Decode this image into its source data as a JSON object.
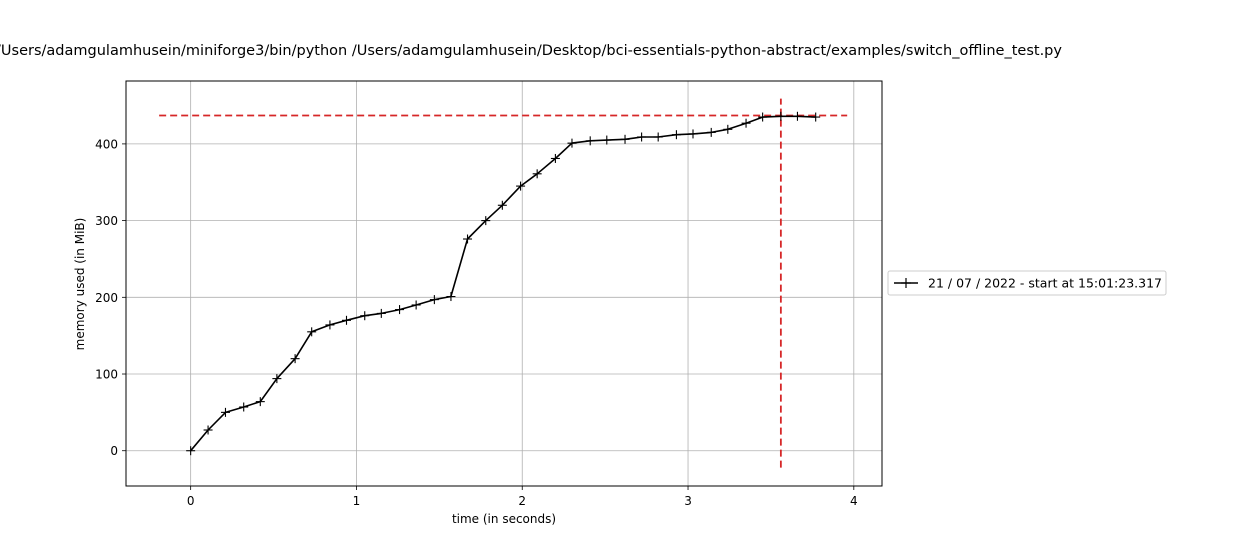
{
  "chart_data": {
    "type": "line",
    "title": "/Users/adamgulamhusein/miniforge3/bin/python /Users/adamgulamhusein/Desktop/bci-essentials-python-abstract/examples/switch_offline_test.py",
    "xlabel": "time (in seconds)",
    "ylabel": "memory used (in MiB)",
    "xlim": [
      -0.39,
      4.17
    ],
    "ylim": [
      -46,
      482
    ],
    "xticks": [
      0,
      1,
      2,
      3,
      4
    ],
    "yticks": [
      0,
      100,
      200,
      300,
      400
    ],
    "grid": true,
    "legend_position": "right, outside plot",
    "series": [
      {
        "name": "21 / 07 / 2022 - start at 15:01:23.317",
        "color": "#000000",
        "marker": "plus",
        "x": [
          0.0,
          0.105,
          0.21,
          0.32,
          0.42,
          0.52,
          0.63,
          0.73,
          0.84,
          0.94,
          1.05,
          1.15,
          1.26,
          1.36,
          1.47,
          1.57,
          1.67,
          1.78,
          1.88,
          1.99,
          2.09,
          2.2,
          2.3,
          2.41,
          2.51,
          2.62,
          2.72,
          2.82,
          2.93,
          3.03,
          3.14,
          3.24,
          3.35,
          3.45,
          3.56,
          3.66,
          3.77
        ],
        "y": [
          0,
          27,
          50,
          57,
          64,
          94,
          120,
          155,
          164,
          170,
          176,
          179,
          184,
          190,
          197,
          201,
          276,
          300,
          320,
          345,
          361,
          381,
          401,
          404,
          405,
          406,
          409,
          409,
          412,
          413,
          415,
          419,
          427,
          435,
          436,
          436,
          435
        ]
      }
    ],
    "annotations": [
      {
        "type": "hline",
        "y": 437,
        "x_from": -0.19,
        "x_to": 3.96,
        "color": "#d62728",
        "style": "dashed"
      },
      {
        "type": "vline",
        "x": 3.56,
        "y_from": -22,
        "y_to": 459,
        "color": "#d62728",
        "style": "dashed"
      }
    ]
  }
}
